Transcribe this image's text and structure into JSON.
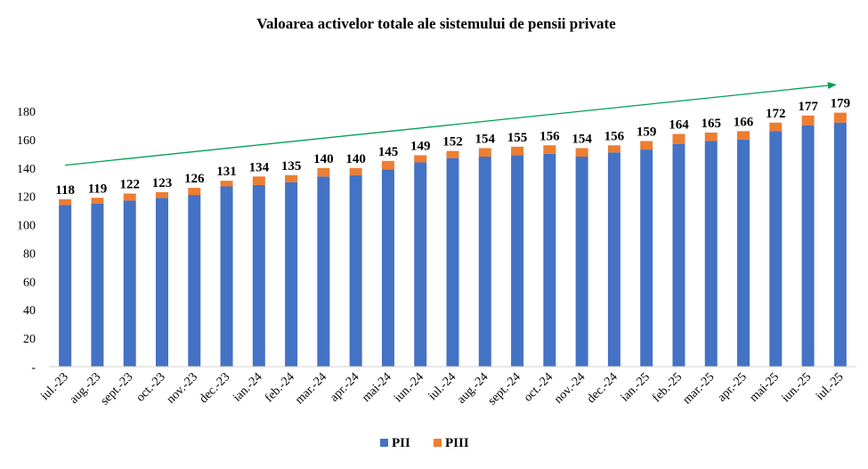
{
  "chart_data": {
    "type": "bar",
    "stacked": true,
    "title": "Valoarea activelor totale ale sistemului  de pensii private",
    "categories": [
      "iul.-23",
      "aug.-23",
      "sept.-23",
      "oct.-23",
      "nov.-23",
      "dec.-23",
      "ian.-24",
      "feb.-24",
      "mar.-24",
      "apr.-24",
      "mai-24",
      "iun.-24",
      "iul.-24",
      "aug.-24",
      "sept.-24",
      "oct.-24",
      "nov.-24",
      "dec.-24",
      "ian.-25",
      "feb.-25",
      "mar.-25",
      "apr.-25",
      "mai-25",
      "iun.-25",
      "iul.-25"
    ],
    "series": [
      {
        "name": "PII",
        "color": "#4472C4",
        "values": [
          114,
          115,
          117,
          119,
          121,
          127,
          128,
          130,
          134,
          135,
          139,
          144,
          147,
          148,
          149,
          150,
          148,
          151,
          153,
          157,
          159,
          160,
          166,
          170,
          172
        ]
      },
      {
        "name": "PIII",
        "color": "#ED7D31",
        "values": [
          4,
          4,
          5,
          4,
          5,
          4,
          6,
          5,
          6,
          5,
          6,
          5,
          5,
          6,
          6,
          6,
          6,
          5,
          6,
          7,
          6,
          6,
          6,
          7,
          7
        ]
      }
    ],
    "totals": [
      118,
      119,
      122,
      123,
      126,
      131,
      134,
      135,
      140,
      140,
      145,
      149,
      152,
      154,
      155,
      156,
      154,
      156,
      159,
      164,
      165,
      166,
      172,
      177,
      179
    ],
    "y_ticks": [
      "-",
      "20",
      "40",
      "60",
      "80",
      "100",
      "120",
      "140",
      "160",
      "180"
    ],
    "ylim": [
      0,
      180
    ],
    "grid": false,
    "legend_position": "bottom",
    "trend_arrow": {
      "from": [
        0,
        142
      ],
      "to": [
        24,
        200
      ],
      "color": "#00A050"
    }
  }
}
